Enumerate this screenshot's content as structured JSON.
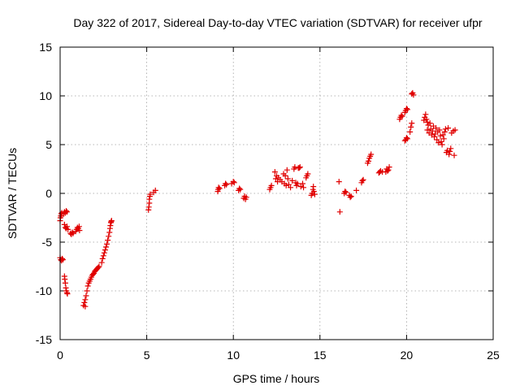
{
  "chart_data": {
    "type": "scatter",
    "title": "Day 322 of 2017, Sidereal Day-to-day VTEC variation (SDTVAR) for receiver ufpr",
    "xlabel": "GPS time / hours",
    "ylabel": "SDTVAR / TECUs",
    "xlim": [
      0,
      25
    ],
    "ylim": [
      -15,
      15
    ],
    "xticks": [
      0,
      5,
      10,
      15,
      20,
      25
    ],
    "yticks": [
      -15,
      -10,
      -5,
      0,
      5,
      10,
      15
    ],
    "grid": true,
    "marker": "plus",
    "color": "#e00000",
    "series": [
      {
        "name": "SDTVAR",
        "points": [
          [
            0.0,
            -2.8
          ],
          [
            0.02,
            -2.5
          ],
          [
            0.04,
            -2.3
          ],
          [
            0.06,
            -2.1
          ],
          [
            0.08,
            -2.3
          ],
          [
            0.1,
            -2.0
          ],
          [
            0.0,
            -6.6
          ],
          [
            0.04,
            -6.8
          ],
          [
            0.08,
            -6.9
          ],
          [
            0.12,
            -6.7
          ],
          [
            0.16,
            -6.8
          ],
          [
            0.2,
            -2.1
          ],
          [
            0.25,
            -1.9
          ],
          [
            0.3,
            -2.0
          ],
          [
            0.35,
            -1.8
          ],
          [
            0.4,
            -1.9
          ],
          [
            0.25,
            -3.2
          ],
          [
            0.3,
            -3.5
          ],
          [
            0.35,
            -3.6
          ],
          [
            0.4,
            -3.4
          ],
          [
            0.45,
            -3.7
          ],
          [
            0.25,
            -8.5
          ],
          [
            0.27,
            -8.8
          ],
          [
            0.3,
            -9.2
          ],
          [
            0.33,
            -9.7
          ],
          [
            0.36,
            -10.0
          ],
          [
            0.4,
            -10.2
          ],
          [
            0.42,
            -10.3
          ],
          [
            0.6,
            -4.1
          ],
          [
            0.65,
            -4.2
          ],
          [
            0.7,
            -4.0
          ],
          [
            0.75,
            -4.1
          ],
          [
            0.9,
            -3.9
          ],
          [
            0.95,
            -3.7
          ],
          [
            1.0,
            -3.5
          ],
          [
            1.05,
            -3.6
          ],
          [
            1.1,
            -3.4
          ],
          [
            1.12,
            -3.8
          ],
          [
            1.35,
            -11.5
          ],
          [
            1.4,
            -11.2
          ],
          [
            1.45,
            -10.9
          ],
          [
            1.45,
            -11.6
          ],
          [
            1.5,
            -10.5
          ],
          [
            1.55,
            -10.0
          ],
          [
            1.6,
            -9.5
          ],
          [
            1.65,
            -9.2
          ],
          [
            1.7,
            -9.0
          ],
          [
            1.75,
            -8.8
          ],
          [
            1.8,
            -8.6
          ],
          [
            1.85,
            -8.4
          ],
          [
            1.9,
            -8.3
          ],
          [
            1.95,
            -8.2
          ],
          [
            2.0,
            -8.0
          ],
          [
            2.05,
            -7.9
          ],
          [
            2.1,
            -7.8
          ],
          [
            2.15,
            -7.7
          ],
          [
            2.2,
            -7.6
          ],
          [
            2.25,
            -7.5
          ],
          [
            2.4,
            -7.1
          ],
          [
            2.45,
            -6.7
          ],
          [
            2.5,
            -6.4
          ],
          [
            2.55,
            -6.1
          ],
          [
            2.6,
            -5.8
          ],
          [
            2.65,
            -5.5
          ],
          [
            2.7,
            -5.2
          ],
          [
            2.75,
            -4.8
          ],
          [
            2.8,
            -4.4
          ],
          [
            2.85,
            -4.0
          ],
          [
            2.88,
            -3.6
          ],
          [
            2.9,
            -3.3
          ],
          [
            2.93,
            -3.0
          ],
          [
            2.95,
            -2.9
          ],
          [
            2.97,
            -2.8
          ],
          [
            5.1,
            -1.7
          ],
          [
            5.12,
            -1.4
          ],
          [
            5.15,
            -1.0
          ],
          [
            5.15,
            -0.6
          ],
          [
            5.18,
            -0.3
          ],
          [
            5.2,
            -0.1
          ],
          [
            5.4,
            0.1
          ],
          [
            5.5,
            0.3
          ],
          [
            9.1,
            0.2
          ],
          [
            9.12,
            0.4
          ],
          [
            9.15,
            0.6
          ],
          [
            9.2,
            0.5
          ],
          [
            9.5,
            0.8
          ],
          [
            9.55,
            1.0
          ],
          [
            9.6,
            0.9
          ],
          [
            9.9,
            1.0
          ],
          [
            10.0,
            1.2
          ],
          [
            10.05,
            1.1
          ],
          [
            10.3,
            0.3
          ],
          [
            10.35,
            0.5
          ],
          [
            10.4,
            0.4
          ],
          [
            10.6,
            -0.5
          ],
          [
            10.65,
            -0.3
          ],
          [
            10.7,
            -0.6
          ],
          [
            10.75,
            -0.4
          ],
          [
            12.1,
            0.4
          ],
          [
            12.15,
            0.6
          ],
          [
            12.2,
            0.8
          ],
          [
            12.4,
            2.2
          ],
          [
            12.45,
            1.5
          ],
          [
            12.5,
            1.8
          ],
          [
            12.55,
            1.2
          ],
          [
            12.6,
            1.6
          ],
          [
            12.7,
            1.4
          ],
          [
            12.8,
            1.2
          ],
          [
            12.9,
            2.0
          ],
          [
            12.95,
            1.0
          ],
          [
            13.0,
            1.8
          ],
          [
            13.05,
            0.8
          ],
          [
            13.1,
            2.4
          ],
          [
            13.15,
            1.5
          ],
          [
            13.2,
            0.9
          ],
          [
            13.3,
            0.6
          ],
          [
            13.4,
            1.3
          ],
          [
            13.5,
            2.5
          ],
          [
            13.55,
            2.7
          ],
          [
            13.6,
            1.1
          ],
          [
            13.65,
            0.8
          ],
          [
            13.7,
            1.0
          ],
          [
            13.75,
            2.6
          ],
          [
            13.8,
            2.6
          ],
          [
            13.85,
            2.7
          ],
          [
            13.9,
            0.7
          ],
          [
            14.0,
            1.0
          ],
          [
            14.05,
            0.6
          ],
          [
            14.2,
            1.6
          ],
          [
            14.25,
            1.8
          ],
          [
            14.3,
            2.0
          ],
          [
            14.5,
            -0.2
          ],
          [
            14.55,
            0.0
          ],
          [
            14.6,
            0.4
          ],
          [
            14.62,
            0.7
          ],
          [
            14.65,
            0.2
          ],
          [
            14.7,
            -0.1
          ],
          [
            16.1,
            1.2
          ],
          [
            16.15,
            -1.9
          ],
          [
            16.4,
            0.0
          ],
          [
            16.45,
            0.2
          ],
          [
            16.5,
            0.1
          ],
          [
            16.7,
            -0.2
          ],
          [
            16.75,
            -0.4
          ],
          [
            16.8,
            -0.3
          ],
          [
            17.1,
            0.3
          ],
          [
            17.4,
            1.1
          ],
          [
            17.45,
            1.3
          ],
          [
            17.5,
            1.4
          ],
          [
            17.75,
            3.1
          ],
          [
            17.8,
            3.3
          ],
          [
            17.85,
            3.6
          ],
          [
            17.9,
            3.8
          ],
          [
            17.95,
            4.0
          ],
          [
            18.4,
            2.1
          ],
          [
            18.45,
            2.2
          ],
          [
            18.5,
            2.3
          ],
          [
            18.6,
            2.2
          ],
          [
            18.8,
            2.2
          ],
          [
            18.85,
            2.5
          ],
          [
            18.9,
            2.3
          ],
          [
            18.95,
            2.4
          ],
          [
            19.0,
            2.7
          ],
          [
            19.6,
            7.6
          ],
          [
            19.65,
            7.8
          ],
          [
            19.7,
            8.0
          ],
          [
            19.75,
            7.9
          ],
          [
            19.9,
            8.3
          ],
          [
            19.95,
            8.5
          ],
          [
            20.0,
            8.7
          ],
          [
            20.05,
            8.6
          ],
          [
            19.9,
            5.4
          ],
          [
            19.95,
            5.5
          ],
          [
            20.0,
            5.7
          ],
          [
            20.05,
            5.6
          ],
          [
            20.2,
            6.3
          ],
          [
            20.25,
            6.8
          ],
          [
            20.3,
            7.2
          ],
          [
            20.3,
            10.2
          ],
          [
            20.35,
            10.3
          ],
          [
            20.4,
            10.1
          ],
          [
            21.0,
            7.5
          ],
          [
            21.05,
            7.8
          ],
          [
            21.1,
            8.1
          ],
          [
            21.15,
            7.6
          ],
          [
            21.2,
            7.3
          ],
          [
            21.25,
            7.0
          ],
          [
            21.2,
            6.5
          ],
          [
            21.3,
            6.2
          ],
          [
            21.35,
            7.2
          ],
          [
            21.4,
            6.6
          ],
          [
            21.45,
            6.0
          ],
          [
            21.5,
            6.4
          ],
          [
            21.55,
            6.9
          ],
          [
            21.6,
            5.8
          ],
          [
            21.65,
            6.1
          ],
          [
            21.7,
            6.7
          ],
          [
            21.75,
            5.5
          ],
          [
            21.8,
            6.3
          ],
          [
            21.85,
            5.2
          ],
          [
            21.9,
            6.5
          ],
          [
            21.95,
            5.9
          ],
          [
            22.0,
            5.3
          ],
          [
            22.05,
            5.0
          ],
          [
            22.1,
            6.0
          ],
          [
            22.15,
            5.6
          ],
          [
            22.2,
            6.3
          ],
          [
            22.25,
            6.6
          ],
          [
            22.3,
            4.2
          ],
          [
            22.35,
            4.4
          ],
          [
            22.4,
            6.7
          ],
          [
            22.45,
            4.0
          ],
          [
            22.5,
            4.3
          ],
          [
            22.55,
            4.6
          ],
          [
            22.6,
            6.2
          ],
          [
            22.7,
            6.4
          ],
          [
            22.75,
            3.9
          ],
          [
            22.8,
            6.5
          ]
        ]
      }
    ]
  }
}
